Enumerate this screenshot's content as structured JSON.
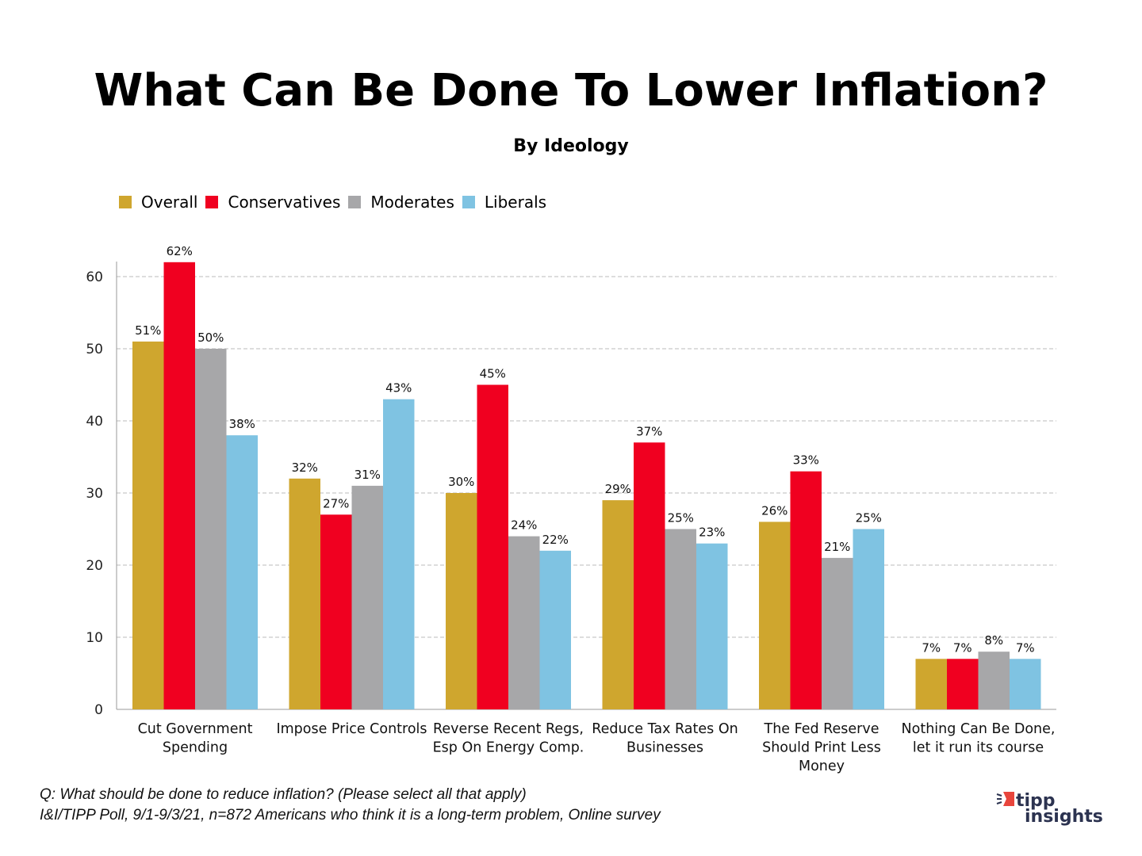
{
  "chart_data": {
    "type": "bar",
    "title": "What Can Be Done To Lower Inflation?",
    "subtitle": "By Ideology",
    "categories": [
      [
        "Cut Government",
        "Spending"
      ],
      [
        "Impose Price Controls"
      ],
      [
        "Reverse Recent Regs,",
        "Esp On Energy Comp."
      ],
      [
        "Reduce Tax Rates On",
        "Businesses"
      ],
      [
        "The Fed Reserve",
        "Should Print Less",
        "Money"
      ],
      [
        "Nothing Can Be Done,",
        "let it run its course"
      ]
    ],
    "series": [
      {
        "name": "Overall",
        "color": "#CFA62E",
        "values": [
          51,
          32,
          30,
          29,
          26,
          7
        ]
      },
      {
        "name": "Conservatives",
        "color": "#F00020",
        "values": [
          62,
          27,
          45,
          37,
          33,
          7
        ]
      },
      {
        "name": "Moderates",
        "color": "#A7A7A9",
        "values": [
          50,
          31,
          24,
          25,
          21,
          8
        ]
      },
      {
        "name": "Liberals",
        "color": "#7FC3E2",
        "values": [
          38,
          43,
          22,
          23,
          25,
          7
        ]
      }
    ],
    "ylim": [
      0,
      62
    ],
    "yticks": [
      0,
      10,
      20,
      30,
      40,
      50,
      60
    ],
    "grid": true,
    "legend_position": "top-left",
    "label_suffix": "%"
  },
  "footer": {
    "question": "Q:  What should be done to reduce inflation? (Please select all that apply)",
    "source": "I&I/TIPP Poll, 9/1-9/3/21, n=872 Americans who think it is a long-term problem, Online survey"
  },
  "logo": {
    "line1": "tipp",
    "line2": "insights"
  }
}
